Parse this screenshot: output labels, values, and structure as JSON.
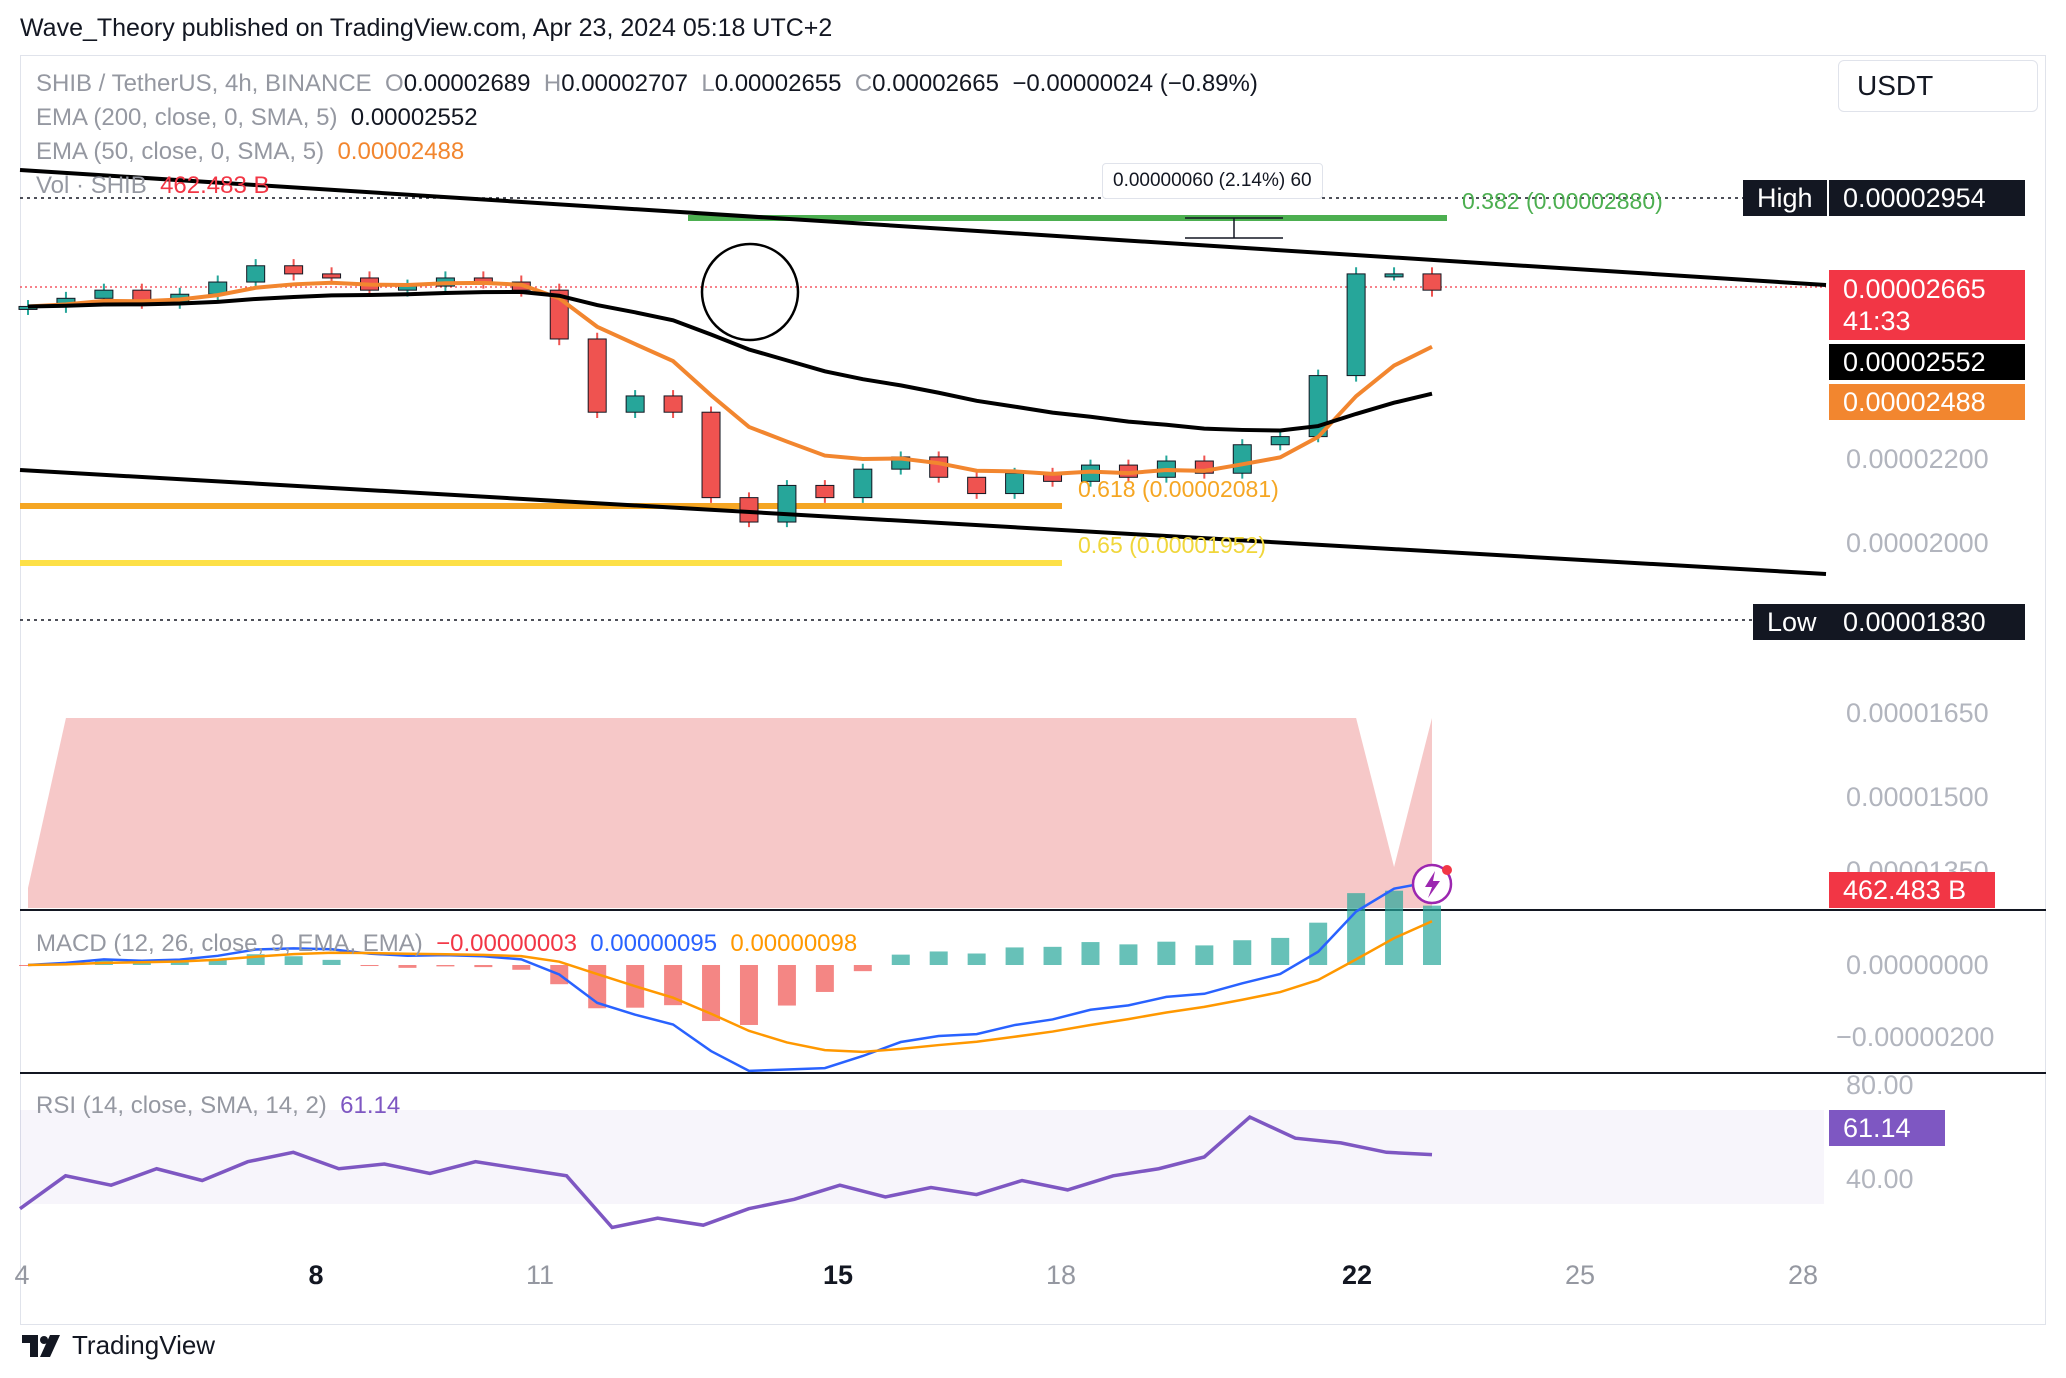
{
  "publisher": "Wave_Theory published on TradingView.com, Apr 23, 2024 05:18 UTC+2",
  "currency_selector": "USDT",
  "brand": "TradingView",
  "colors": {
    "up": "#26a69a",
    "down": "#ef5350",
    "ema50": "#f2862f",
    "ema200": "#000000",
    "fib382": "#4caf50",
    "fib618": "#f5a623",
    "fib65": "#fde047",
    "macd": "#2962ff",
    "signal": "#ff9800",
    "rsi": "#7e57c2",
    "price_tag": "#f23645"
  },
  "legend": {
    "symbol": "SHIB / TetherUS, 4h, BINANCE",
    "o_label": "O",
    "o_value": "0.00002689",
    "h_label": "H",
    "h_value": "0.00002707",
    "l_label": "L",
    "l_value": "0.00002655",
    "c_label": "C",
    "c_value": "0.00002665",
    "change": "−0.00000024 (−0.89%)",
    "ema200_label": "EMA (200, close, 0, SMA, 5)",
    "ema200_value": "0.00002552",
    "ema50_label": "EMA (50, close, 0, SMA, 5)",
    "ema50_value": "0.00002488",
    "vol_label": "Vol · SHIB",
    "vol_value": "462.483 B",
    "macd_label": "MACD (12, 26, close, 9, EMA, EMA)",
    "macd_hist": "−0.00000003",
    "macd_value": "0.00000095",
    "macd_signal": "0.00000098",
    "rsi_label": "RSI (14, close, SMA, 14, 2)",
    "rsi_value": "61.14"
  },
  "price_tags": {
    "high_label": "High",
    "high_value": "0.00002954",
    "low_label": "Low",
    "low_value": "0.00001830",
    "last_price": "0.00002665",
    "countdown": "41:33",
    "ema200": "0.00002552",
    "ema50": "0.00002488",
    "volume": "462.483 B",
    "rsi": "61.14"
  },
  "fib_levels": {
    "f382": "0.382 (0.00002880)",
    "f618": "0.618 (0.00002081)",
    "f65": "0.65 (0.00001952)"
  },
  "measure_label": "0.00000060 (2.14%) 60",
  "price_axis": [
    "0.00002200",
    "0.00002000",
    "0.00001650",
    "0.00001500",
    "0.00001350"
  ],
  "macd_axis": [
    "0.00000000",
    "−0.00000200"
  ],
  "rsi_axis": [
    "80.00",
    "40.00"
  ],
  "chart_data": {
    "type": "line",
    "interval": "4h",
    "x_ticks": [
      "4",
      "8",
      "11",
      "15",
      "18",
      "22",
      "25",
      "28"
    ],
    "ohlc_close": [
      2.62e-05,
      2.64e-05,
      2.66e-05,
      2.63e-05,
      2.65e-05,
      2.68e-05,
      2.72e-05,
      2.7e-05,
      2.69e-05,
      2.66e-05,
      2.67e-05,
      2.69e-05,
      2.68e-05,
      2.66e-05,
      2.54e-05,
      2.36e-05,
      2.4e-05,
      2.36e-05,
      2.15e-05,
      2.09e-05,
      2.18e-05,
      2.15e-05,
      2.22e-05,
      2.25e-05,
      2.2e-05,
      2.16e-05,
      2.21e-05,
      2.19e-05,
      2.23e-05,
      2.2e-05,
      2.24e-05,
      2.21e-05,
      2.28e-05,
      2.3e-05,
      2.45e-05,
      2.7e-05,
      2.7e-05,
      2.66e-05
    ],
    "rsi_values": [
      38,
      52,
      48,
      55,
      50,
      58,
      62,
      55,
      57,
      53,
      58,
      55,
      52,
      30,
      34,
      31,
      38,
      42,
      48,
      43,
      47,
      44,
      50,
      46,
      52,
      55,
      60,
      77,
      68,
      66,
      62,
      61
    ],
    "ylim": [
      1.8e-05,
      2.98e-05
    ]
  }
}
